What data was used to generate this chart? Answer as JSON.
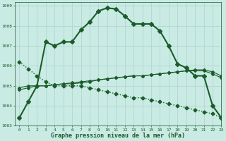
{
  "title": "Graphe pression niveau de la mer (hPa)",
  "bg_color": "#caeae4",
  "grid_color": "#b0d8d0",
  "line_color": "#1a5c2a",
  "xlim": [
    -0.5,
    23
  ],
  "ylim": [
    1003.0,
    1009.2
  ],
  "yticks": [
    1003,
    1004,
    1005,
    1006,
    1007,
    1008,
    1009
  ],
  "xticks": [
    0,
    1,
    2,
    3,
    4,
    5,
    6,
    7,
    8,
    9,
    10,
    11,
    12,
    13,
    14,
    15,
    16,
    17,
    18,
    19,
    20,
    21,
    22,
    23
  ],
  "series": [
    {
      "x": [
        0,
        1,
        2,
        3,
        4,
        5,
        6,
        7,
        8,
        9,
        10,
        11,
        12,
        13,
        14,
        15,
        16,
        17,
        18,
        19,
        20,
        21,
        22,
        23
      ],
      "y": [
        1003.4,
        1004.2,
        1005.0,
        1007.2,
        1007.0,
        1007.2,
        1007.2,
        1007.8,
        1008.2,
        1008.75,
        1008.9,
        1008.85,
        1008.5,
        1008.1,
        1008.1,
        1008.1,
        1007.75,
        1007.0,
        1006.1,
        1005.9,
        1005.5,
        1005.5,
        1004.0,
        1003.4
      ],
      "marker": "D",
      "ls": "-",
      "ms": 3.0,
      "lw": 1.5
    },
    {
      "x": [
        0,
        1,
        2,
        3,
        4,
        5,
        6,
        7,
        8,
        9,
        10,
        11,
        12,
        13,
        14,
        15,
        16,
        17,
        18,
        19,
        20,
        21,
        22,
        23
      ],
      "y": [
        1006.2,
        1005.85,
        1005.5,
        1005.2,
        1005.0,
        1005.0,
        1005.0,
        1005.0,
        1004.9,
        1004.8,
        1004.7,
        1004.6,
        1004.5,
        1004.4,
        1004.4,
        1004.3,
        1004.2,
        1004.1,
        1004.0,
        1003.9,
        1003.8,
        1003.7,
        1003.6,
        1003.4
      ],
      "marker": "D",
      "ls": ":",
      "ms": 2.5,
      "lw": 1.0
    },
    {
      "x": [
        0,
        1,
        2,
        3,
        4,
        5,
        6,
        7,
        8,
        9,
        10,
        11,
        12,
        13,
        14,
        15,
        16,
        17,
        18,
        19,
        20,
        21,
        22,
        23
      ],
      "y": [
        1004.8,
        1004.9,
        1005.0,
        1005.0,
        1005.05,
        1005.1,
        1005.1,
        1005.15,
        1005.2,
        1005.3,
        1005.35,
        1005.4,
        1005.45,
        1005.5,
        1005.5,
        1005.55,
        1005.6,
        1005.65,
        1005.7,
        1005.75,
        1005.8,
        1005.8,
        1005.7,
        1005.5
      ],
      "marker": "D",
      "ls": "-",
      "ms": 2.0,
      "lw": 0.8
    },
    {
      "x": [
        0,
        1,
        2,
        3,
        4,
        5,
        6,
        7,
        8,
        9,
        10,
        11,
        12,
        13,
        14,
        15,
        16,
        17,
        18,
        19,
        20,
        21,
        22,
        23
      ],
      "y": [
        1004.9,
        1005.0,
        1005.0,
        1005.0,
        1005.05,
        1005.1,
        1005.15,
        1005.2,
        1005.25,
        1005.3,
        1005.35,
        1005.4,
        1005.45,
        1005.5,
        1005.5,
        1005.55,
        1005.6,
        1005.65,
        1005.7,
        1005.75,
        1005.75,
        1005.75,
        1005.6,
        1005.4
      ],
      "marker": "D",
      "ls": "-",
      "ms": 2.0,
      "lw": 0.8
    }
  ]
}
